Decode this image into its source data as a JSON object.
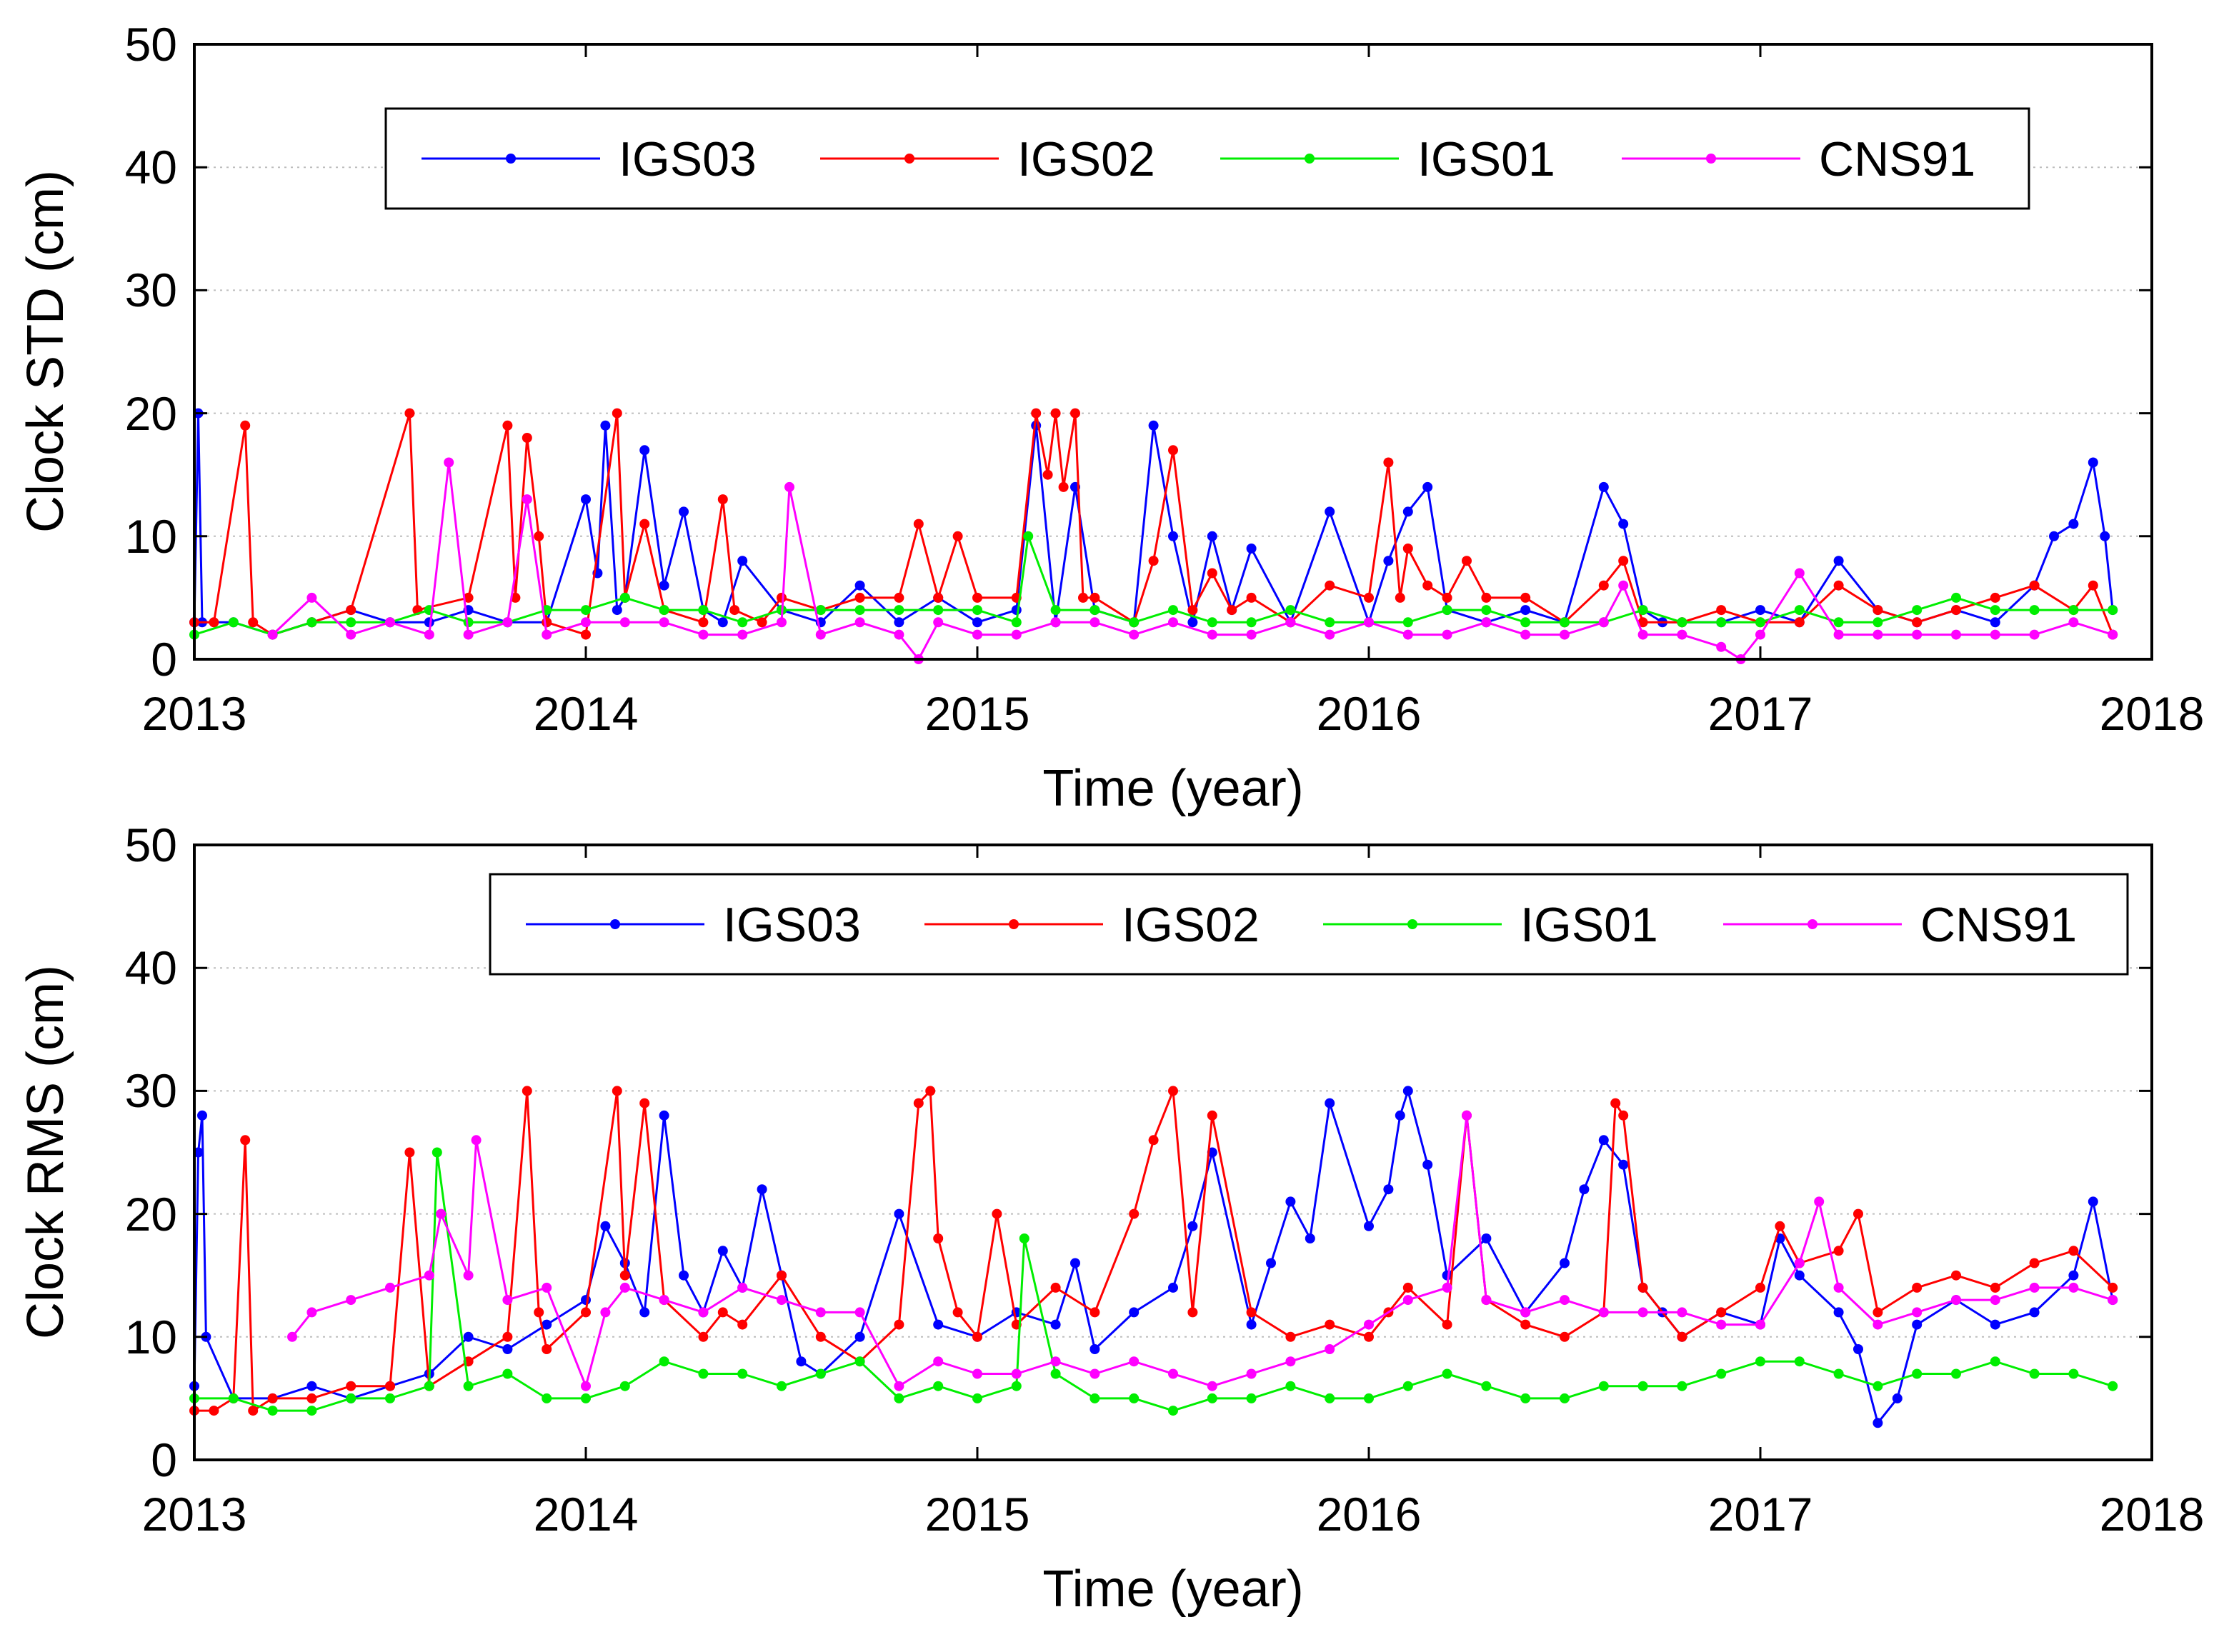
{
  "chart_data": [
    {
      "type": "line",
      "id": "std",
      "xlabel": "Time (year)",
      "ylabel": "Clock STD (cm)",
      "xlim": [
        2013,
        2018
      ],
      "ylim": [
        0,
        50
      ],
      "xticks": [
        "2013",
        "2014",
        "2015",
        "2016",
        "2017",
        "2018"
      ],
      "yticks": [
        "0",
        "10",
        "20",
        "30",
        "40",
        "50"
      ],
      "grid": true,
      "legend_position": "top",
      "series": [
        {
          "name": "IGS03",
          "color": "#0000ff",
          "x": [
            2013.0,
            2013.01,
            2013.02,
            2013.1,
            2013.2,
            2013.3,
            2013.4,
            2013.5,
            2013.6,
            2013.7,
            2013.8,
            2013.9,
            2014.0,
            2014.03,
            2014.05,
            2014.08,
            2014.1,
            2014.15,
            2014.2,
            2014.25,
            2014.3,
            2014.35,
            2014.4,
            2014.5,
            2014.6,
            2014.7,
            2014.8,
            2014.9,
            2015.0,
            2015.1,
            2015.15,
            2015.2,
            2015.25,
            2015.3,
            2015.4,
            2015.45,
            2015.5,
            2015.55,
            2015.6,
            2015.65,
            2015.7,
            2015.8,
            2015.9,
            2016.0,
            2016.05,
            2016.1,
            2016.15,
            2016.2,
            2016.3,
            2016.4,
            2016.5,
            2016.6,
            2016.65,
            2016.7,
            2016.75,
            2016.8,
            2016.9,
            2017.0,
            2017.1,
            2017.2,
            2017.3,
            2017.4,
            2017.5,
            2017.6,
            2017.7,
            2017.75,
            2017.8,
            2017.85,
            2017.88,
            2017.9
          ],
          "y": [
            3,
            20,
            3,
            3,
            2,
            3,
            4,
            3,
            3,
            4,
            3,
            3,
            13,
            7,
            19,
            4,
            5,
            17,
            6,
            12,
            4,
            3,
            8,
            4,
            3,
            6,
            3,
            5,
            3,
            4,
            19,
            3,
            14,
            4,
            3,
            19,
            10,
            3,
            10,
            4,
            9,
            3,
            12,
            3,
            8,
            12,
            14,
            4,
            3,
            4,
            3,
            14,
            11,
            4,
            3,
            3,
            3,
            4,
            3,
            8,
            4,
            3,
            4,
            3,
            6,
            10,
            11,
            16,
            10,
            4
          ]
        },
        {
          "name": "IGS02",
          "color": "#ff0000",
          "x": [
            2013.0,
            2013.05,
            2013.13,
            2013.15,
            2013.2,
            2013.3,
            2013.4,
            2013.55,
            2013.57,
            2013.7,
            2013.8,
            2013.82,
            2013.85,
            2013.88,
            2013.9,
            2014.0,
            2014.08,
            2014.1,
            2014.15,
            2014.2,
            2014.3,
            2014.35,
            2014.38,
            2014.45,
            2014.5,
            2014.6,
            2014.7,
            2014.8,
            2014.85,
            2014.9,
            2014.95,
            2015.0,
            2015.1,
            2015.15,
            2015.18,
            2015.2,
            2015.22,
            2015.25,
            2015.27,
            2015.3,
            2015.4,
            2015.45,
            2015.5,
            2015.55,
            2015.6,
            2015.65,
            2015.7,
            2015.8,
            2015.9,
            2016.0,
            2016.05,
            2016.08,
            2016.1,
            2016.15,
            2016.2,
            2016.25,
            2016.3,
            2016.4,
            2016.5,
            2016.6,
            2016.65,
            2016.7,
            2016.8,
            2016.9,
            2017.0,
            2017.1,
            2017.2,
            2017.3,
            2017.4,
            2017.5,
            2017.6,
            2017.7,
            2017.8,
            2017.85,
            2017.9
          ],
          "y": [
            3,
            3,
            19,
            3,
            2,
            3,
            4,
            20,
            4,
            5,
            19,
            5,
            18,
            10,
            3,
            2,
            20,
            5,
            11,
            4,
            3,
            13,
            4,
            3,
            5,
            4,
            5,
            5,
            11,
            5,
            10,
            5,
            5,
            20,
            15,
            20,
            14,
            20,
            5,
            5,
            3,
            8,
            17,
            4,
            7,
            4,
            5,
            3,
            6,
            5,
            16,
            5,
            9,
            6,
            5,
            8,
            5,
            5,
            3,
            6,
            8,
            3,
            3,
            4,
            3,
            3,
            6,
            4,
            3,
            4,
            5,
            6,
            4,
            6,
            2
          ]
        },
        {
          "name": "IGS01",
          "color": "#00ee00",
          "x": [
            2013.0,
            2013.1,
            2013.2,
            2013.3,
            2013.4,
            2013.5,
            2013.6,
            2013.7,
            2013.8,
            2013.9,
            2014.0,
            2014.1,
            2014.2,
            2014.3,
            2014.4,
            2014.5,
            2014.6,
            2014.7,
            2014.8,
            2014.9,
            2015.0,
            2015.1,
            2015.13,
            2015.2,
            2015.3,
            2015.4,
            2015.5,
            2015.6,
            2015.7,
            2015.8,
            2015.9,
            2016.0,
            2016.1,
            2016.2,
            2016.3,
            2016.4,
            2016.5,
            2016.6,
            2016.7,
            2016.8,
            2016.9,
            2017.0,
            2017.1,
            2017.2,
            2017.3,
            2017.4,
            2017.5,
            2017.6,
            2017.7,
            2017.8,
            2017.9
          ],
          "y": [
            2,
            3,
            2,
            3,
            3,
            3,
            4,
            3,
            3,
            4,
            4,
            5,
            4,
            4,
            3,
            4,
            4,
            4,
            4,
            4,
            4,
            3,
            10,
            4,
            4,
            3,
            4,
            3,
            3,
            4,
            3,
            3,
            3,
            4,
            4,
            3,
            3,
            3,
            4,
            3,
            3,
            3,
            4,
            3,
            3,
            4,
            5,
            4,
            4,
            4,
            4
          ]
        },
        {
          "name": "CNS91",
          "color": "#ff00ff",
          "x": [
            2013.2,
            2013.3,
            2013.4,
            2013.5,
            2013.6,
            2013.65,
            2013.7,
            2013.8,
            2013.85,
            2013.9,
            2014.0,
            2014.1,
            2014.2,
            2014.3,
            2014.4,
            2014.5,
            2014.52,
            2014.6,
            2014.7,
            2014.8,
            2014.85,
            2014.9,
            2015.0,
            2015.1,
            2015.2,
            2015.3,
            2015.4,
            2015.5,
            2015.6,
            2015.7,
            2015.8,
            2015.9,
            2016.0,
            2016.1,
            2016.2,
            2016.3,
            2016.4,
            2016.5,
            2016.6,
            2016.65,
            2016.7,
            2016.8,
            2016.9,
            2016.95,
            2017.0,
            2017.1,
            2017.2,
            2017.3,
            2017.4,
            2017.5,
            2017.6,
            2017.7,
            2017.8,
            2017.9
          ],
          "y": [
            2,
            5,
            2,
            3,
            2,
            16,
            2,
            3,
            13,
            2,
            3,
            3,
            3,
            2,
            2,
            3,
            14,
            2,
            3,
            2,
            0,
            3,
            2,
            2,
            3,
            3,
            2,
            3,
            2,
            2,
            3,
            2,
            3,
            2,
            2,
            3,
            2,
            2,
            3,
            6,
            2,
            2,
            1,
            0,
            2,
            7,
            2,
            2,
            2,
            2,
            2,
            2,
            3,
            2
          ]
        }
      ]
    },
    {
      "type": "line",
      "id": "rms",
      "xlabel": "Time (year)",
      "ylabel": "Clock RMS (cm)",
      "xlim": [
        2013,
        2018
      ],
      "ylim": [
        0,
        50
      ],
      "xticks": [
        "2013",
        "2014",
        "2015",
        "2016",
        "2017",
        "2018"
      ],
      "yticks": [
        "0",
        "10",
        "20",
        "30",
        "40",
        "50"
      ],
      "grid": true,
      "legend_position": "top-right",
      "series": [
        {
          "name": "IGS03",
          "color": "#0000ff",
          "x": [
            2013.0,
            2013.01,
            2013.02,
            2013.03,
            2013.1,
            2013.2,
            2013.3,
            2013.4,
            2013.5,
            2013.6,
            2013.7,
            2013.8,
            2013.9,
            2014.0,
            2014.05,
            2014.1,
            2014.15,
            2014.2,
            2014.25,
            2014.3,
            2014.35,
            2014.4,
            2014.45,
            2014.5,
            2014.55,
            2014.6,
            2014.7,
            2014.8,
            2014.9,
            2015.0,
            2015.1,
            2015.2,
            2015.25,
            2015.3,
            2015.4,
            2015.5,
            2015.55,
            2015.6,
            2015.7,
            2015.75,
            2015.8,
            2015.85,
            2015.9,
            2016.0,
            2016.05,
            2016.08,
            2016.1,
            2016.15,
            2016.2,
            2016.3,
            2016.4,
            2016.5,
            2016.55,
            2016.6,
            2016.65,
            2016.7,
            2016.75,
            2016.8,
            2016.9,
            2017.0,
            2017.05,
            2017.1,
            2017.2,
            2017.25,
            2017.3,
            2017.35,
            2017.4,
            2017.5,
            2017.6,
            2017.7,
            2017.8,
            2017.85,
            2017.9
          ],
          "y": [
            6,
            25,
            28,
            10,
            5,
            5,
            6,
            5,
            6,
            7,
            10,
            9,
            11,
            13,
            19,
            16,
            12,
            28,
            15,
            12,
            17,
            14,
            22,
            15,
            8,
            7,
            10,
            20,
            11,
            10,
            12,
            11,
            16,
            9,
            12,
            14,
            19,
            25,
            11,
            16,
            21,
            18,
            29,
            19,
            22,
            28,
            30,
            24,
            15,
            18,
            12,
            16,
            22,
            26,
            24,
            14,
            12,
            10,
            12,
            11,
            18,
            15,
            12,
            9,
            3,
            5,
            11,
            13,
            11,
            12,
            15,
            21,
            13
          ]
        },
        {
          "name": "IGS02",
          "color": "#ff0000",
          "x": [
            2013.0,
            2013.05,
            2013.1,
            2013.13,
            2013.15,
            2013.2,
            2013.3,
            2013.4,
            2013.5,
            2013.55,
            2013.6,
            2013.7,
            2013.8,
            2013.85,
            2013.88,
            2013.9,
            2014.0,
            2014.08,
            2014.1,
            2014.15,
            2014.2,
            2014.3,
            2014.35,
            2014.4,
            2014.5,
            2014.6,
            2014.7,
            2014.8,
            2014.85,
            2014.88,
            2014.9,
            2014.95,
            2015.0,
            2015.05,
            2015.1,
            2015.2,
            2015.3,
            2015.4,
            2015.45,
            2015.5,
            2015.55,
            2015.6,
            2015.7,
            2015.8,
            2015.9,
            2016.0,
            2016.05,
            2016.1,
            2016.2,
            2016.25,
            2016.3,
            2016.4,
            2016.5,
            2016.6,
            2016.63,
            2016.65,
            2016.7,
            2016.8,
            2016.9,
            2017.0,
            2017.05,
            2017.1,
            2017.2,
            2017.25,
            2017.3,
            2017.4,
            2017.5,
            2017.6,
            2017.7,
            2017.8,
            2017.9
          ],
          "y": [
            4,
            4,
            5,
            26,
            4,
            5,
            5,
            6,
            6,
            25,
            6,
            8,
            10,
            30,
            12,
            9,
            12,
            30,
            15,
            29,
            13,
            10,
            12,
            11,
            15,
            10,
            8,
            11,
            29,
            30,
            18,
            12,
            10,
            20,
            11,
            14,
            12,
            20,
            26,
            30,
            12,
            28,
            12,
            10,
            11,
            10,
            12,
            14,
            11,
            28,
            13,
            11,
            10,
            12,
            29,
            28,
            14,
            10,
            12,
            14,
            19,
            16,
            17,
            20,
            12,
            14,
            15,
            14,
            16,
            17,
            14
          ]
        },
        {
          "name": "IGS01",
          "color": "#00ee00",
          "x": [
            2013.0,
            2013.1,
            2013.2,
            2013.3,
            2013.4,
            2013.5,
            2013.6,
            2013.62,
            2013.7,
            2013.8,
            2013.9,
            2014.0,
            2014.1,
            2014.2,
            2014.3,
            2014.4,
            2014.5,
            2014.6,
            2014.7,
            2014.8,
            2014.9,
            2015.0,
            2015.1,
            2015.12,
            2015.2,
            2015.3,
            2015.4,
            2015.5,
            2015.6,
            2015.7,
            2015.8,
            2015.9,
            2016.0,
            2016.1,
            2016.2,
            2016.3,
            2016.4,
            2016.5,
            2016.6,
            2016.7,
            2016.8,
            2016.9,
            2017.0,
            2017.1,
            2017.2,
            2017.3,
            2017.4,
            2017.5,
            2017.6,
            2017.7,
            2017.8,
            2017.9
          ],
          "y": [
            5,
            5,
            4,
            4,
            5,
            5,
            6,
            25,
            6,
            7,
            5,
            5,
            6,
            8,
            7,
            7,
            6,
            7,
            8,
            5,
            6,
            5,
            6,
            18,
            7,
            5,
            5,
            4,
            5,
            5,
            6,
            5,
            5,
            6,
            7,
            6,
            5,
            5,
            6,
            6,
            6,
            7,
            8,
            8,
            7,
            6,
            7,
            7,
            8,
            7,
            7,
            6
          ]
        },
        {
          "name": "CNS91",
          "color": "#ff00ff",
          "x": [
            2013.25,
            2013.3,
            2013.4,
            2013.5,
            2013.6,
            2013.63,
            2013.7,
            2013.72,
            2013.8,
            2013.9,
            2014.0,
            2014.05,
            2014.1,
            2014.2,
            2014.3,
            2014.4,
            2014.5,
            2014.6,
            2014.7,
            2014.8,
            2014.9,
            2015.0,
            2015.1,
            2015.2,
            2015.3,
            2015.4,
            2015.5,
            2015.6,
            2015.7,
            2015.8,
            2015.9,
            2016.0,
            2016.1,
            2016.2,
            2016.25,
            2016.3,
            2016.4,
            2016.5,
            2016.6,
            2016.7,
            2016.8,
            2016.9,
            2017.0,
            2017.1,
            2017.15,
            2017.2,
            2017.3,
            2017.4,
            2017.5,
            2017.6,
            2017.7,
            2017.8,
            2017.9
          ],
          "y": [
            10,
            12,
            13,
            14,
            15,
            20,
            15,
            26,
            13,
            14,
            6,
            12,
            14,
            13,
            12,
            14,
            13,
            12,
            12,
            6,
            8,
            7,
            7,
            8,
            7,
            8,
            7,
            6,
            7,
            8,
            9,
            11,
            13,
            14,
            28,
            13,
            12,
            13,
            12,
            12,
            12,
            11,
            11,
            16,
            21,
            14,
            11,
            12,
            13,
            13,
            14,
            14,
            13
          ]
        }
      ]
    }
  ]
}
